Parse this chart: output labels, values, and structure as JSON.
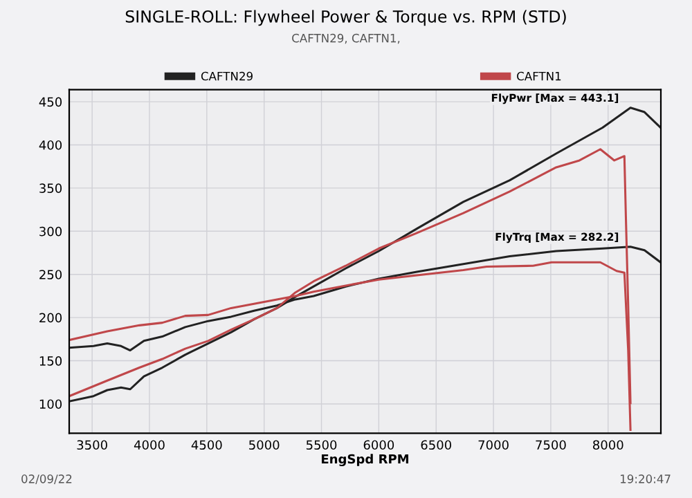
{
  "chart_data": {
    "type": "line",
    "title": "SINGLE-ROLL: Flywheel Power & Torque vs. RPM (STD)",
    "subtitle": "CAFTN29, CAFTN1,",
    "xlabel": "EngSpd RPM",
    "xlim": [
      3300,
      8460
    ],
    "xticks": [
      3500,
      4000,
      4500,
      5000,
      5500,
      6000,
      6500,
      7000,
      7500,
      8000
    ],
    "ylim": [
      66,
      464
    ],
    "yticks": [
      100,
      150,
      200,
      250,
      300,
      350,
      400,
      450
    ],
    "grid": true,
    "legend": "top",
    "marker": "none",
    "line_style": "solid",
    "series": [
      {
        "name": "CAFTN29",
        "color": "#222222",
        "x": [
          3300,
          3512,
          3632,
          3752,
          3832,
          3952,
          4112,
          4312,
          4512,
          4712,
          4912,
          5112,
          5272,
          5432,
          5712,
          6000,
          6332,
          6737,
          7142,
          7547,
          7952,
          8195,
          8317,
          8458
        ],
        "values": [
          103,
          109,
          116,
          119,
          117,
          132,
          142,
          157,
          170,
          183,
          198,
          211,
          224,
          236,
          257,
          277,
          303,
          334,
          359,
          390,
          420,
          443,
          438,
          420
        ]
      },
      {
        "color": "#222222",
        "x": [
          3300,
          3512,
          3632,
          3752,
          3832,
          3952,
          4112,
          4312,
          4512,
          4712,
          4912,
          5112,
          5272,
          5432,
          5712,
          6000,
          6332,
          6737,
          7142,
          7547,
          7952,
          8195,
          8317,
          8458
        ],
        "values": [
          165,
          167,
          170,
          167,
          162,
          173,
          178,
          189,
          196,
          201,
          208,
          214,
          221,
          225,
          236,
          245,
          253,
          262,
          271,
          277,
          280,
          282,
          278,
          264
        ]
      },
      {
        "name": "CAFTN1",
        "color": "#c0474a",
        "x": [
          3300,
          3632,
          3912,
          4112,
          4312,
          4512,
          4712,
          4912,
          5112,
          5272,
          5432,
          5712,
          6000,
          6332,
          6737,
          7142,
          7547,
          7750,
          7932,
          8054,
          8142,
          8155,
          8175,
          8195
        ],
        "values": [
          109,
          127,
          142,
          152,
          164,
          173,
          186,
          198,
          211,
          229,
          242,
          260,
          280,
          298,
          321,
          346,
          374,
          382,
          395,
          382,
          387,
          316,
          214,
          101
        ]
      },
      {
        "color": "#c0474a",
        "x": [
          3300,
          3632,
          3912,
          4112,
          4312,
          4512,
          4712,
          4912,
          5112,
          5272,
          5432,
          5712,
          6000,
          6332,
          6737,
          6940,
          7345,
          7507,
          7932,
          8074,
          8142,
          8175,
          8195
        ],
        "values": [
          174,
          184,
          191,
          194,
          202,
          203,
          211,
          216,
          221,
          225,
          230,
          237,
          244,
          249,
          255,
          259,
          260,
          264,
          264,
          254,
          252,
          162,
          70
        ]
      }
    ],
    "annotations": [
      {
        "text": "FlyPwr [Max = 443.1]",
        "x": 8195,
        "y": 443
      },
      {
        "text": "FlyTrq [Max = 282.2]",
        "x": 8195,
        "y": 282
      },
      "02/09/22",
      "19:20:47"
    ]
  }
}
